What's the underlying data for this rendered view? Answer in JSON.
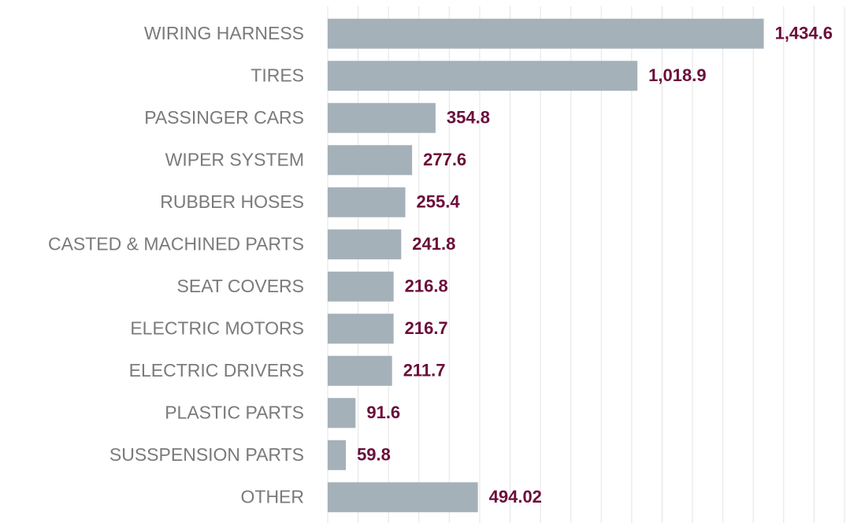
{
  "chart_data": {
    "type": "bar",
    "orientation": "horizontal",
    "categories": [
      "WIRING HARNESS",
      "TIRES",
      "PASSINGER CARS",
      "WIPER SYSTEM",
      "RUBBER HOSES",
      "CASTED & MACHINED PARTS",
      "SEAT COVERS",
      "ELECTRIC MOTORS",
      "ELECTRIC DRIVERS",
      "PLASTIC PARTS",
      "SUSSPENSION PARTS",
      "OTHER"
    ],
    "values": [
      1434.6,
      1018.9,
      354.8,
      277.6,
      255.4,
      241.8,
      216.8,
      216.7,
      211.7,
      91.6,
      59.8,
      494.02
    ],
    "value_labels": [
      "1,434.6",
      "1,018.9",
      "354.8",
      "277.6",
      "255.4",
      "241.8",
      "216.8",
      "216.7",
      "211.7",
      "91.6",
      "59.8",
      "494.02"
    ],
    "color": "#a5b1b9",
    "label_color": "#6b0d3a",
    "xlim": [
      0,
      1700
    ],
    "xticks": [
      0,
      100,
      200,
      300,
      400,
      500,
      600,
      700,
      800,
      900,
      1000,
      1100,
      1200,
      1300,
      1400,
      1500,
      1600,
      1700
    ],
    "grid": true
  }
}
